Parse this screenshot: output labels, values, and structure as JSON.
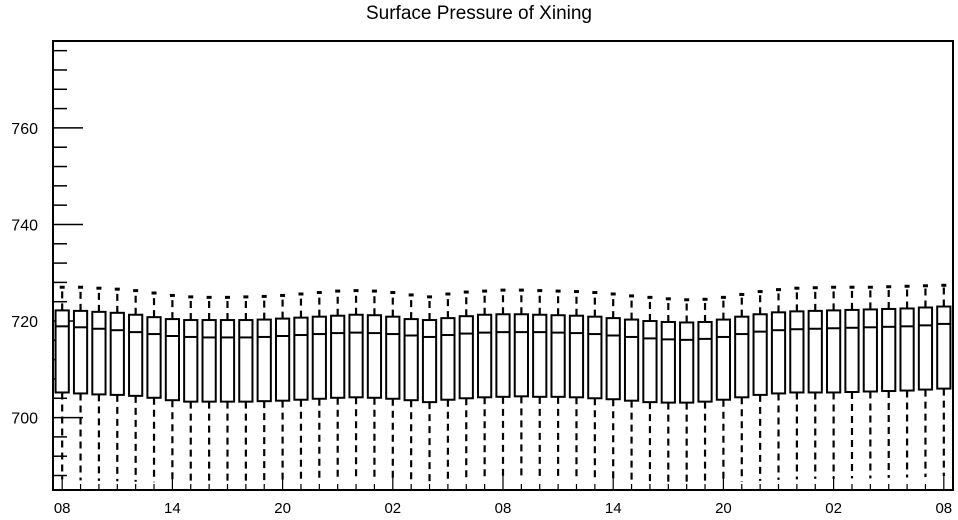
{
  "chart_data": {
    "type": "box",
    "title": "Surface Pressure of Xining",
    "xlabel": "",
    "ylabel": "",
    "ylim": [
      685,
      778
    ],
    "y_ticks": [
      700,
      720,
      740,
      760
    ],
    "x_tick_labels": [
      "08",
      "14",
      "20",
      "02",
      "08",
      "14",
      "20",
      "02",
      "08"
    ],
    "x_tick_box_index": [
      0,
      6,
      12,
      18,
      24,
      30,
      36,
      42,
      48
    ],
    "grid": false,
    "whisker_high": [
      727.0,
      727.0,
      726.8,
      726.6,
      726.3,
      725.8,
      725.3,
      725.0,
      724.9,
      724.9,
      725.0,
      725.1,
      725.3,
      725.6,
      725.9,
      726.2,
      726.3,
      726.2,
      725.9,
      725.4,
      725.0,
      725.6,
      726.0,
      726.2,
      726.4,
      726.4,
      726.3,
      726.2,
      726.1,
      725.9,
      725.6,
      725.2,
      724.9,
      724.6,
      724.4,
      724.5,
      724.9,
      725.5,
      726.1,
      726.5,
      726.8,
      726.9,
      727.0,
      727.0,
      727.0,
      727.1,
      727.2,
      727.3,
      727.4
    ],
    "q3": [
      722.2,
      722.1,
      721.9,
      721.7,
      721.3,
      720.8,
      720.4,
      720.2,
      720.2,
      720.2,
      720.2,
      720.3,
      720.5,
      720.7,
      720.9,
      721.1,
      721.3,
      721.2,
      720.9,
      720.4,
      720.2,
      720.6,
      721.0,
      721.3,
      721.4,
      721.4,
      721.3,
      721.2,
      721.1,
      720.9,
      720.6,
      720.3,
      720.0,
      719.8,
      719.7,
      719.8,
      720.3,
      720.9,
      721.4,
      721.8,
      722.0,
      722.1,
      722.2,
      722.3,
      722.4,
      722.5,
      722.6,
      722.8,
      723.0
    ],
    "median": [
      718.9,
      718.7,
      718.4,
      718.1,
      717.7,
      717.3,
      716.9,
      716.7,
      716.6,
      716.6,
      716.6,
      716.7,
      716.9,
      717.1,
      717.3,
      717.5,
      717.6,
      717.5,
      717.3,
      717.0,
      716.7,
      717.1,
      717.4,
      717.6,
      717.7,
      717.7,
      717.7,
      717.6,
      717.5,
      717.3,
      717.0,
      716.7,
      716.4,
      716.2,
      716.1,
      716.3,
      716.7,
      717.3,
      717.8,
      718.1,
      718.3,
      718.4,
      718.5,
      718.6,
      718.7,
      718.8,
      718.9,
      719.1,
      719.4
    ],
    "q1": [
      705.2,
      705.0,
      704.8,
      704.7,
      704.5,
      704.1,
      703.6,
      703.3,
      703.3,
      703.3,
      703.3,
      703.4,
      703.5,
      703.7,
      703.9,
      704.1,
      704.2,
      704.1,
      703.9,
      703.6,
      703.2,
      703.7,
      704.0,
      704.2,
      704.3,
      704.4,
      704.3,
      704.3,
      704.2,
      704.0,
      703.8,
      703.5,
      703.2,
      703.1,
      703.1,
      703.3,
      703.7,
      704.2,
      704.7,
      705.0,
      705.2,
      705.2,
      705.2,
      705.3,
      705.4,
      705.5,
      705.6,
      705.8,
      706.0
    ],
    "whisker_low": [
      687.2,
      687.0,
      686.9,
      686.8,
      686.7,
      686.6,
      686.5,
      686.4,
      686.4,
      686.4,
      686.4,
      686.5,
      686.6,
      686.7,
      686.8,
      686.9,
      687.0,
      686.9,
      686.8,
      686.7,
      686.5,
      686.6,
      686.8,
      686.9,
      687.0,
      687.0,
      686.9,
      686.9,
      686.8,
      686.7,
      686.6,
      686.5,
      686.4,
      686.3,
      686.3,
      686.4,
      686.5,
      686.7,
      686.9,
      687.1,
      687.2,
      687.3,
      687.3,
      687.4,
      687.4,
      687.5,
      687.6,
      687.7,
      687.9
    ]
  }
}
